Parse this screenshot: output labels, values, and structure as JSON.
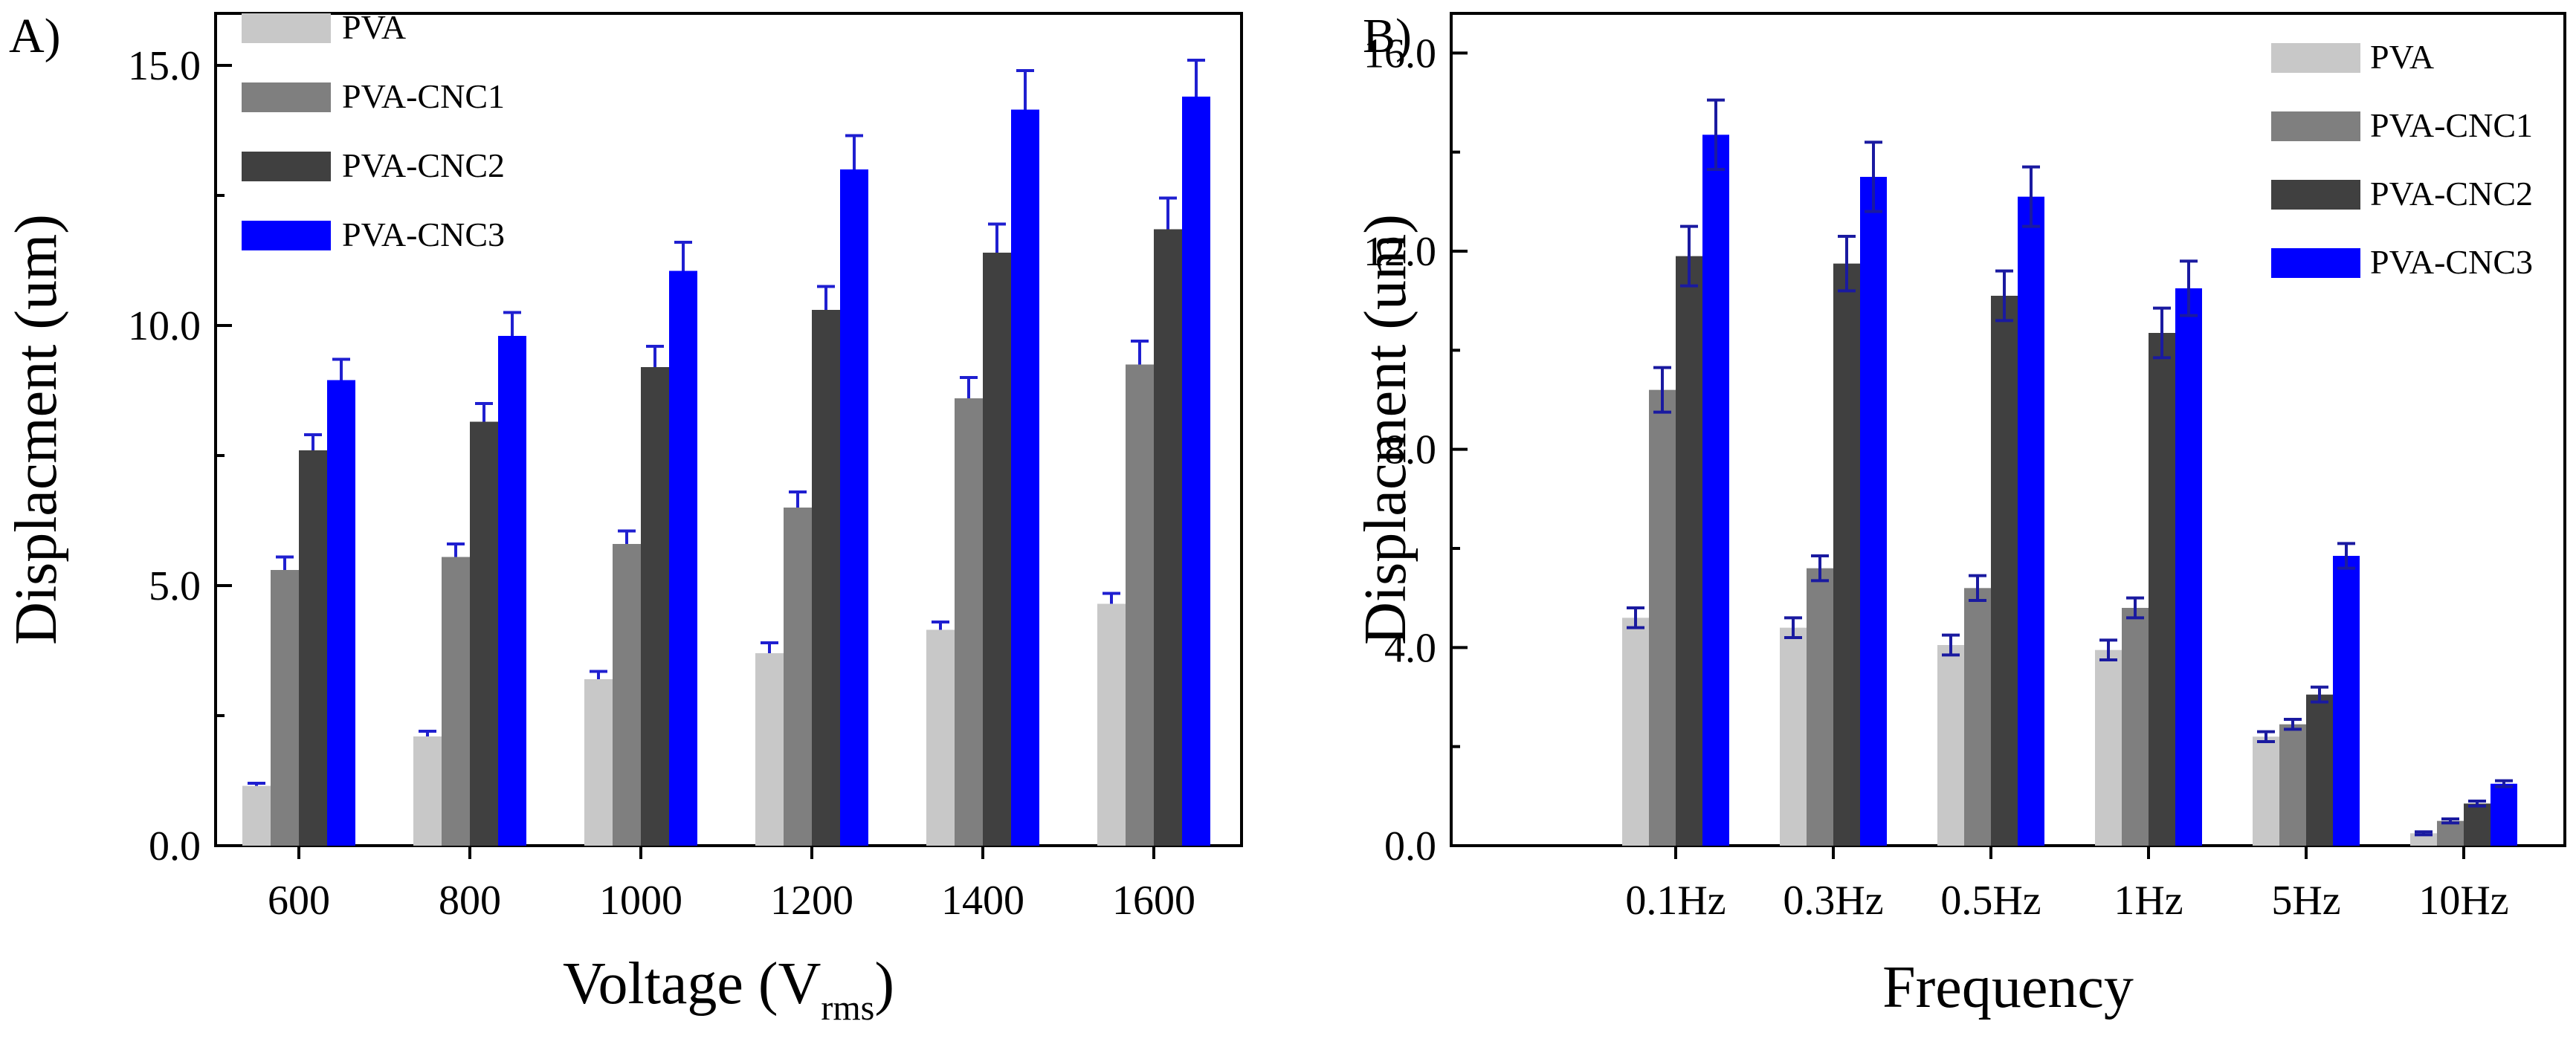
{
  "figure": {
    "panel_labels": [
      "A)",
      "B)"
    ]
  },
  "chart_data": [
    {
      "type": "bar",
      "panel": "A)",
      "title": "",
      "xlabel": "Voltage (V",
      "xlabel_subscript": "rms",
      "xlabel_close": ")",
      "ylabel": "Displacment (um)",
      "ylim": [
        0,
        16
      ],
      "yticks": [
        0,
        5,
        10,
        15
      ],
      "ytick_labels": [
        "0.0",
        "5.0",
        "10.0",
        "15.0"
      ],
      "categories": [
        "600",
        "800",
        "1000",
        "1200",
        "1400",
        "1600"
      ],
      "series": [
        {
          "name": "PVA",
          "color": "#c8c8c8",
          "values": [
            1.15,
            2.1,
            3.2,
            3.7,
            4.15,
            4.65
          ],
          "errors": [
            0.05,
            0.1,
            0.15,
            0.2,
            0.15,
            0.2
          ]
        },
        {
          "name": "PVA-CNC1",
          "color": "#7f7f7f",
          "values": [
            5.3,
            5.55,
            5.8,
            6.5,
            8.6,
            9.25
          ],
          "errors": [
            0.25,
            0.25,
            0.25,
            0.3,
            0.4,
            0.45
          ]
        },
        {
          "name": "PVA-CNC2",
          "color": "#404040",
          "values": [
            7.6,
            8.15,
            9.2,
            10.3,
            11.4,
            11.85
          ],
          "errors": [
            0.3,
            0.35,
            0.4,
            0.45,
            0.55,
            0.6
          ]
        },
        {
          "name": "PVA-CNC3",
          "color": "#0000ff",
          "values": [
            8.95,
            9.8,
            11.05,
            13.0,
            14.15,
            14.4
          ],
          "errors": [
            0.4,
            0.45,
            0.55,
            0.65,
            0.75,
            0.7
          ]
        }
      ],
      "grid": false,
      "legend": "top-left"
    },
    {
      "type": "bar",
      "panel": "B)",
      "title": "",
      "xlabel": "Frequency",
      "ylabel": "Displacment (um)",
      "ylim": [
        0,
        16.8
      ],
      "yticks": [
        0,
        4,
        8,
        12,
        16
      ],
      "ytick_labels": [
        "0.0",
        "4.0",
        "8.0",
        "12.0",
        "16.0"
      ],
      "categories": [
        "0.1Hz",
        "0.3Hz",
        "0.5Hz",
        "1Hz",
        "5Hz",
        "10Hz"
      ],
      "series": [
        {
          "name": "PVA",
          "color": "#c8c8c8",
          "values": [
            4.6,
            4.4,
            4.05,
            3.95,
            2.2,
            0.25
          ],
          "errors": [
            0.2,
            0.2,
            0.2,
            0.2,
            0.1,
            0.03
          ]
        },
        {
          "name": "PVA-CNC1",
          "color": "#7f7f7f",
          "values": [
            9.2,
            5.6,
            5.2,
            4.8,
            2.45,
            0.5
          ],
          "errors": [
            0.45,
            0.25,
            0.25,
            0.2,
            0.1,
            0.04
          ]
        },
        {
          "name": "PVA-CNC2",
          "color": "#404040",
          "values": [
            11.9,
            11.75,
            11.1,
            10.35,
            3.05,
            0.85
          ],
          "errors": [
            0.6,
            0.55,
            0.5,
            0.5,
            0.15,
            0.05
          ]
        },
        {
          "name": "PVA-CNC3",
          "color": "#0000ff",
          "values": [
            14.35,
            13.5,
            13.1,
            11.25,
            5.85,
            1.25
          ],
          "errors": [
            0.7,
            0.7,
            0.6,
            0.55,
            0.25,
            0.06
          ]
        }
      ],
      "grid": false,
      "legend": "top-right"
    }
  ]
}
